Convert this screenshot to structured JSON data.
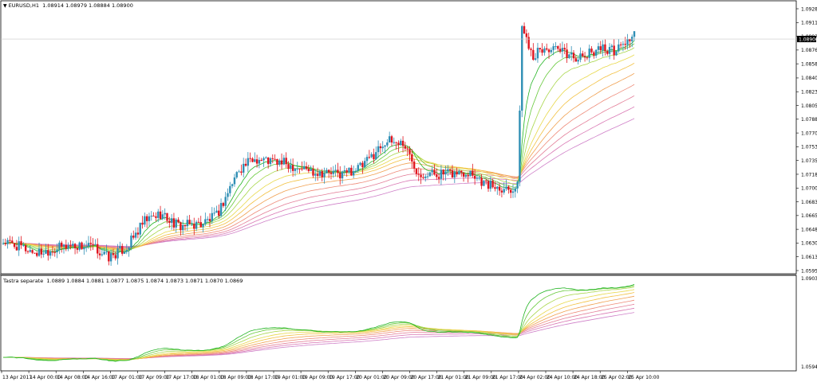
{
  "main": {
    "symbol_label": "EURUSD,H1",
    "ohlc": "1.08914 1.08979 1.08884 1.08900",
    "current_price": "1.08900",
    "price_ticks": [
      "1.09285",
      "1.09110",
      "1.08935",
      "1.08760",
      "1.08585",
      "1.08405",
      "1.08230",
      "1.08055",
      "1.07880",
      "1.07705",
      "1.07530",
      "1.07355",
      "1.07180",
      "1.07005",
      "1.06830",
      "1.06655",
      "1.06480",
      "1.06305",
      "1.06130",
      "1.05955"
    ]
  },
  "indicator": {
    "label": "Tastra separate",
    "values": "1.0889 1.0884 1.0881 1.0877 1.0875 1.0874 1.0873 1.0871 1.0870 1.0869",
    "ticks": [
      "1.0903",
      "1.0594"
    ]
  },
  "time_axis": [
    "13 Apr 2017",
    "14 Apr 00:00",
    "14 Apr 08:00",
    "14 Apr 16:00",
    "17 Apr 01:00",
    "17 Apr 09:00",
    "17 Apr 17:00",
    "18 Apr 01:00",
    "18 Apr 09:00",
    "18 Apr 17:00",
    "19 Apr 01:00",
    "19 Apr 09:00",
    "19 Apr 17:00",
    "20 Apr 01:00",
    "20 Apr 09:00",
    "20 Apr 17:00",
    "21 Apr 01:00",
    "21 Apr 09:00",
    "21 Apr 17:00",
    "24 Apr 02:00",
    "24 Apr 10:00",
    "24 Apr 18:00",
    "25 Apr 02:00",
    "25 Apr 10:00"
  ],
  "colors": {
    "bull": "#2f8fb5",
    "bear": "#e0141e",
    "ribbon": [
      "#22b422",
      "#66c93a",
      "#a8d64a",
      "#e8d84a",
      "#f2c040",
      "#f0a050",
      "#ee8a78",
      "#e37e98",
      "#d978b4",
      "#cf80c8"
    ]
  },
  "chart_data": {
    "type": "candlestick",
    "price_range": [
      1.05955,
      1.09285
    ],
    "anchors": [
      [
        0,
        1.0632
      ],
      [
        8,
        1.0625
      ],
      [
        15,
        1.0618
      ],
      [
        30,
        1.0628
      ],
      [
        40,
        1.0625
      ],
      [
        47,
        1.0612
      ],
      [
        55,
        1.0625
      ],
      [
        63,
        1.0658
      ],
      [
        70,
        1.0668
      ],
      [
        78,
        1.0652
      ],
      [
        88,
        1.0655
      ],
      [
        95,
        1.0665
      ],
      [
        105,
        1.0725
      ],
      [
        112,
        1.0738
      ],
      [
        125,
        1.0732
      ],
      [
        138,
        1.0722
      ],
      [
        150,
        1.0718
      ],
      [
        160,
        1.0728
      ],
      [
        170,
        1.076
      ],
      [
        178,
        1.0758
      ],
      [
        185,
        1.072
      ],
      [
        198,
        1.0718
      ],
      [
        208,
        1.0722
      ],
      [
        215,
        1.0705
      ],
      [
        226,
        1.07
      ],
      [
        229,
        1.0702
      ],
      [
        231,
        1.0905
      ],
      [
        236,
        1.087
      ],
      [
        242,
        1.0878
      ],
      [
        250,
        1.0872
      ],
      [
        258,
        1.0865
      ],
      [
        265,
        1.088
      ],
      [
        272,
        1.0875
      ],
      [
        281,
        1.0895
      ]
    ],
    "indicator_range": [
      1.0594,
      1.0903
    ],
    "indicator_periods": [
      3,
      5,
      8,
      12,
      16,
      21,
      27,
      34,
      42,
      52
    ]
  }
}
